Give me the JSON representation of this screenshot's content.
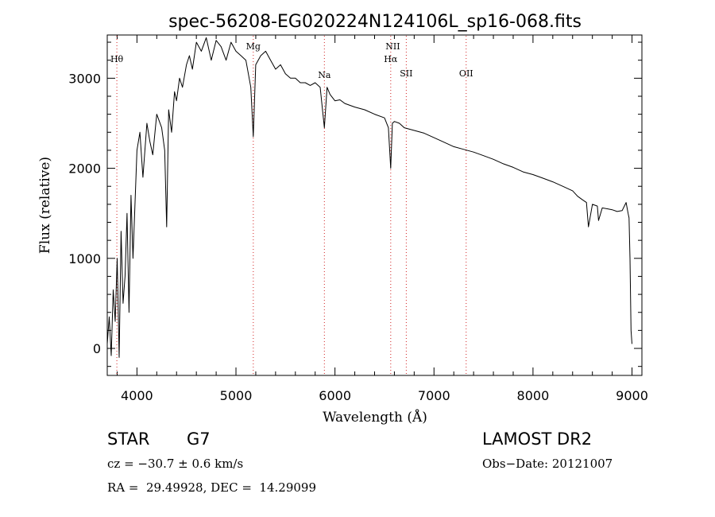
{
  "chart_data": {
    "type": "line",
    "title": "spec-56208-EG020224N124106L_sp16-068.fits",
    "xlabel": "Wavelength (Å)",
    "ylabel": "Flux (relative)",
    "xlim": [
      3700,
      9100
    ],
    "ylim": [
      -300,
      3480
    ],
    "xticks": [
      4000,
      5000,
      6000,
      7000,
      8000,
      9000
    ],
    "yticks": [
      0,
      1000,
      2000,
      3000
    ],
    "grid": false,
    "series": [
      {
        "color": "#000000",
        "x": [
          3700,
          3720,
          3740,
          3760,
          3780,
          3800,
          3820,
          3840,
          3860,
          3880,
          3900,
          3920,
          3940,
          3960,
          3980,
          4000,
          4030,
          4060,
          4100,
          4130,
          4160,
          4200,
          4250,
          4280,
          4300,
          4320,
          4350,
          4380,
          4400,
          4430,
          4460,
          4500,
          4530,
          4560,
          4600,
          4650,
          4700,
          4750,
          4800,
          4850,
          4900,
          4950,
          5000,
          5050,
          5100,
          5150,
          5175,
          5200,
          5250,
          5300,
          5350,
          5400,
          5450,
          5500,
          5550,
          5600,
          5650,
          5700,
          5750,
          5800,
          5850,
          5893,
          5920,
          5950,
          6000,
          6050,
          6100,
          6200,
          6300,
          6400,
          6500,
          6540,
          6563,
          6580,
          6600,
          6650,
          6700,
          6800,
          6900,
          7000,
          7100,
          7200,
          7300,
          7400,
          7500,
          7600,
          7700,
          7800,
          7900,
          8000,
          8100,
          8200,
          8300,
          8400,
          8450,
          8500,
          8540,
          8560,
          8600,
          8650,
          8662,
          8700,
          8750,
          8800,
          8850,
          8900,
          8940,
          8960,
          8970,
          8980,
          8990,
          9000
        ],
        "values": [
          50,
          350,
          -80,
          650,
          300,
          1000,
          -100,
          1300,
          500,
          800,
          1500,
          400,
          1700,
          1000,
          1600,
          2200,
          2400,
          1900,
          2500,
          2300,
          2150,
          2600,
          2450,
          2200,
          1350,
          2650,
          2400,
          2850,
          2750,
          3000,
          2900,
          3150,
          3250,
          3100,
          3400,
          3300,
          3450,
          3200,
          3420,
          3350,
          3200,
          3400,
          3300,
          3250,
          3200,
          2900,
          2350,
          3150,
          3250,
          3300,
          3200,
          3100,
          3150,
          3050,
          3000,
          3000,
          2950,
          2950,
          2920,
          2950,
          2900,
          2450,
          2900,
          2820,
          2750,
          2760,
          2720,
          2680,
          2650,
          2600,
          2560,
          2450,
          2000,
          2500,
          2520,
          2500,
          2450,
          2420,
          2390,
          2340,
          2290,
          2240,
          2210,
          2180,
          2140,
          2100,
          2050,
          2010,
          1960,
          1930,
          1890,
          1850,
          1800,
          1750,
          1690,
          1650,
          1620,
          1350,
          1600,
          1580,
          1420,
          1560,
          1550,
          1540,
          1520,
          1530,
          1620,
          1500,
          1450,
          1000,
          200,
          50
        ]
      }
    ],
    "annotations": [
      {
        "label": "Hθ",
        "x": 3797,
        "line": true
      },
      {
        "label": "Mg",
        "x": 5175,
        "line": true
      },
      {
        "label": "Na",
        "x": 5893,
        "line": true
      },
      {
        "label": "NII",
        "x": 6584,
        "line": false
      },
      {
        "label": "Hα",
        "x": 6563,
        "line": true
      },
      {
        "label": "SII",
        "x": 6720,
        "line": true
      },
      {
        "label": "OII",
        "x": 7325,
        "line": true
      }
    ]
  },
  "info": {
    "class_label": "STAR",
    "subclass_label": "G7",
    "survey": "LAMOST DR2",
    "redshift": "cz = −30.7 ± 0.6 km/s",
    "obs_date": "Obs−Date: 20121007",
    "coords": "RA =  29.49928, DEC =  14.29099"
  }
}
